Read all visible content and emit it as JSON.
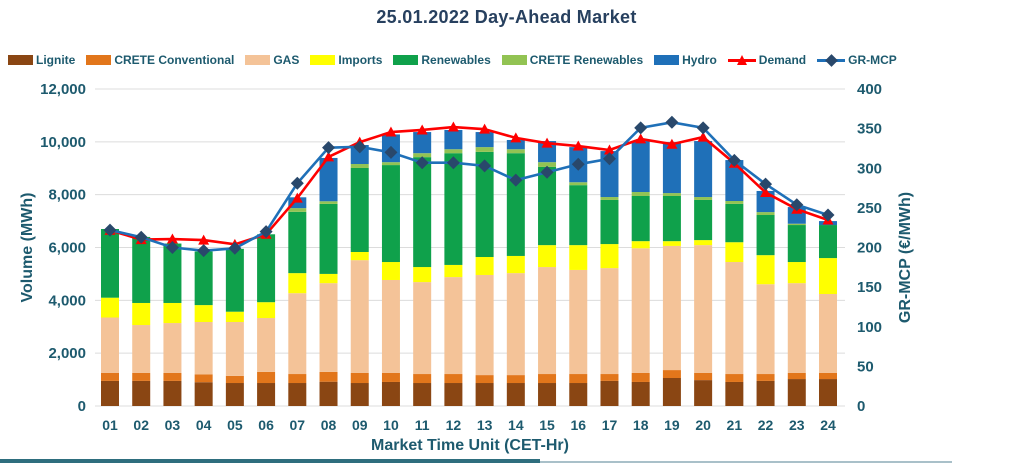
{
  "title": "25.01.2022  Day-Ahead Market",
  "chart_data": {
    "type": "combo-stacked-bar-line",
    "title": "25.01.2022  Day-Ahead Market",
    "legend_position": "top",
    "grid": true,
    "categories": [
      "01",
      "02",
      "03",
      "04",
      "05",
      "06",
      "07",
      "08",
      "09",
      "10",
      "11",
      "12",
      "13",
      "14",
      "15",
      "16",
      "17",
      "18",
      "19",
      "20",
      "21",
      "22",
      "23",
      "24"
    ],
    "stack_series": [
      {
        "name": "Lignite",
        "color": "#8a4613",
        "values": [
          950,
          950,
          950,
          900,
          870,
          870,
          870,
          920,
          870,
          910,
          870,
          870,
          870,
          870,
          870,
          870,
          950,
          910,
          1060,
          980,
          910,
          950,
          1020,
          1020
        ]
      },
      {
        "name": "CRETE Conventional",
        "color": "#e2761b",
        "values": [
          300,
          300,
          300,
          300,
          270,
          420,
          340,
          370,
          380,
          340,
          340,
          340,
          300,
          300,
          340,
          340,
          260,
          340,
          300,
          270,
          300,
          260,
          230,
          230
        ]
      },
      {
        "name": "GAS",
        "color": "#f4c398",
        "values": [
          2100,
          1815,
          1890,
          1980,
          2040,
          2040,
          3060,
          3360,
          4270,
          3520,
          3480,
          3670,
          3790,
          3860,
          4050,
          3940,
          4010,
          4720,
          4700,
          4840,
          4240,
          3400,
          3400,
          2990
        ]
      },
      {
        "name": "Imports",
        "color": "#ffff00",
        "values": [
          750,
          835,
          760,
          640,
          390,
          600,
          760,
          350,
          310,
          680,
          570,
          460,
          680,
          650,
          830,
          940,
          910,
          270,
          180,
          190,
          750,
          1100,
          800,
          1360
        ]
      },
      {
        "name": "Renewables",
        "color": "#0fa14b",
        "values": [
          2600,
          2500,
          2250,
          2030,
          2380,
          2570,
          2320,
          2650,
          3180,
          3670,
          4160,
          4230,
          3980,
          3890,
          2960,
          2270,
          1670,
          1710,
          1710,
          1520,
          1450,
          1520,
          1400,
          1250
        ]
      },
      {
        "name": "CRETE Renewables",
        "color": "#92c353",
        "values": [
          0,
          0,
          0,
          0,
          0,
          0,
          140,
          100,
          150,
          110,
          150,
          150,
          180,
          150,
          180,
          110,
          110,
          150,
          110,
          110,
          110,
          110,
          50,
          0
        ]
      },
      {
        "name": "Hydro",
        "color": "#1f70b8",
        "values": [
          0,
          0,
          0,
          0,
          0,
          0,
          410,
          1640,
          720,
          1050,
          800,
          730,
          570,
          350,
          800,
          1330,
          1740,
          1930,
          1930,
          2120,
          1550,
          800,
          630,
          150
        ]
      }
    ],
    "line_series": [
      {
        "name": "Demand",
        "axis": "left",
        "color": "#fe0000",
        "marker": "triangle",
        "values": [
          6650,
          6300,
          6320,
          6280,
          6120,
          6500,
          7870,
          9430,
          9990,
          10370,
          10450,
          10560,
          10480,
          10150,
          9950,
          9840,
          9690,
          10110,
          9910,
          10180,
          9190,
          8080,
          7450,
          7040
        ]
      },
      {
        "name": "GR-MCP",
        "axis": "right",
        "color": "#1f70b8",
        "marker": "diamond",
        "marker_color": "#29486b",
        "values": [
          222,
          213,
          200,
          196,
          199,
          220,
          281,
          326,
          327,
          320,
          307,
          307,
          303,
          285,
          295,
          305,
          312,
          351,
          358,
          351,
          310,
          280,
          254,
          241
        ]
      }
    ],
    "left_axis": {
      "title": "Volume (MWh)",
      "min": 0,
      "max": 12000,
      "step": 2000
    },
    "right_axis": {
      "title": "GR-MCP (€/MWh)",
      "min": 0,
      "max": 400,
      "step": 50
    },
    "x_axis": {
      "title": "Market Time Unit (CET-Hr)"
    }
  }
}
